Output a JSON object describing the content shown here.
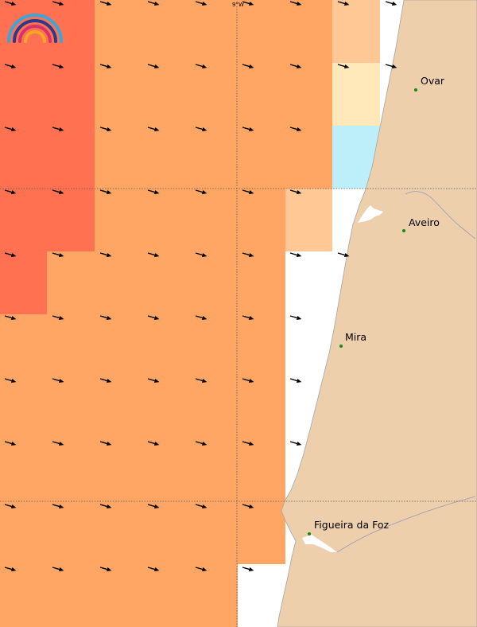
{
  "map": {
    "graticule_label": "9°W",
    "colors": {
      "ocean": "#ffffff",
      "land": "#eecfab",
      "coastline": "#a6a6a6",
      "level_high": "#ff7150",
      "level_mid": "#ffa665",
      "level_low": "#ffc895",
      "level_lower": "#ffe9bb",
      "level_lowest": "#bdeffb",
      "arrow": "#000000",
      "city_dot": "#138a13"
    },
    "logo_icon": "rainbow-arcs-icon",
    "cities": [
      {
        "name": "Ovar"
      },
      {
        "name": "Aveiro"
      },
      {
        "name": "Mira"
      },
      {
        "name": "Figueira da Foz"
      }
    ]
  }
}
